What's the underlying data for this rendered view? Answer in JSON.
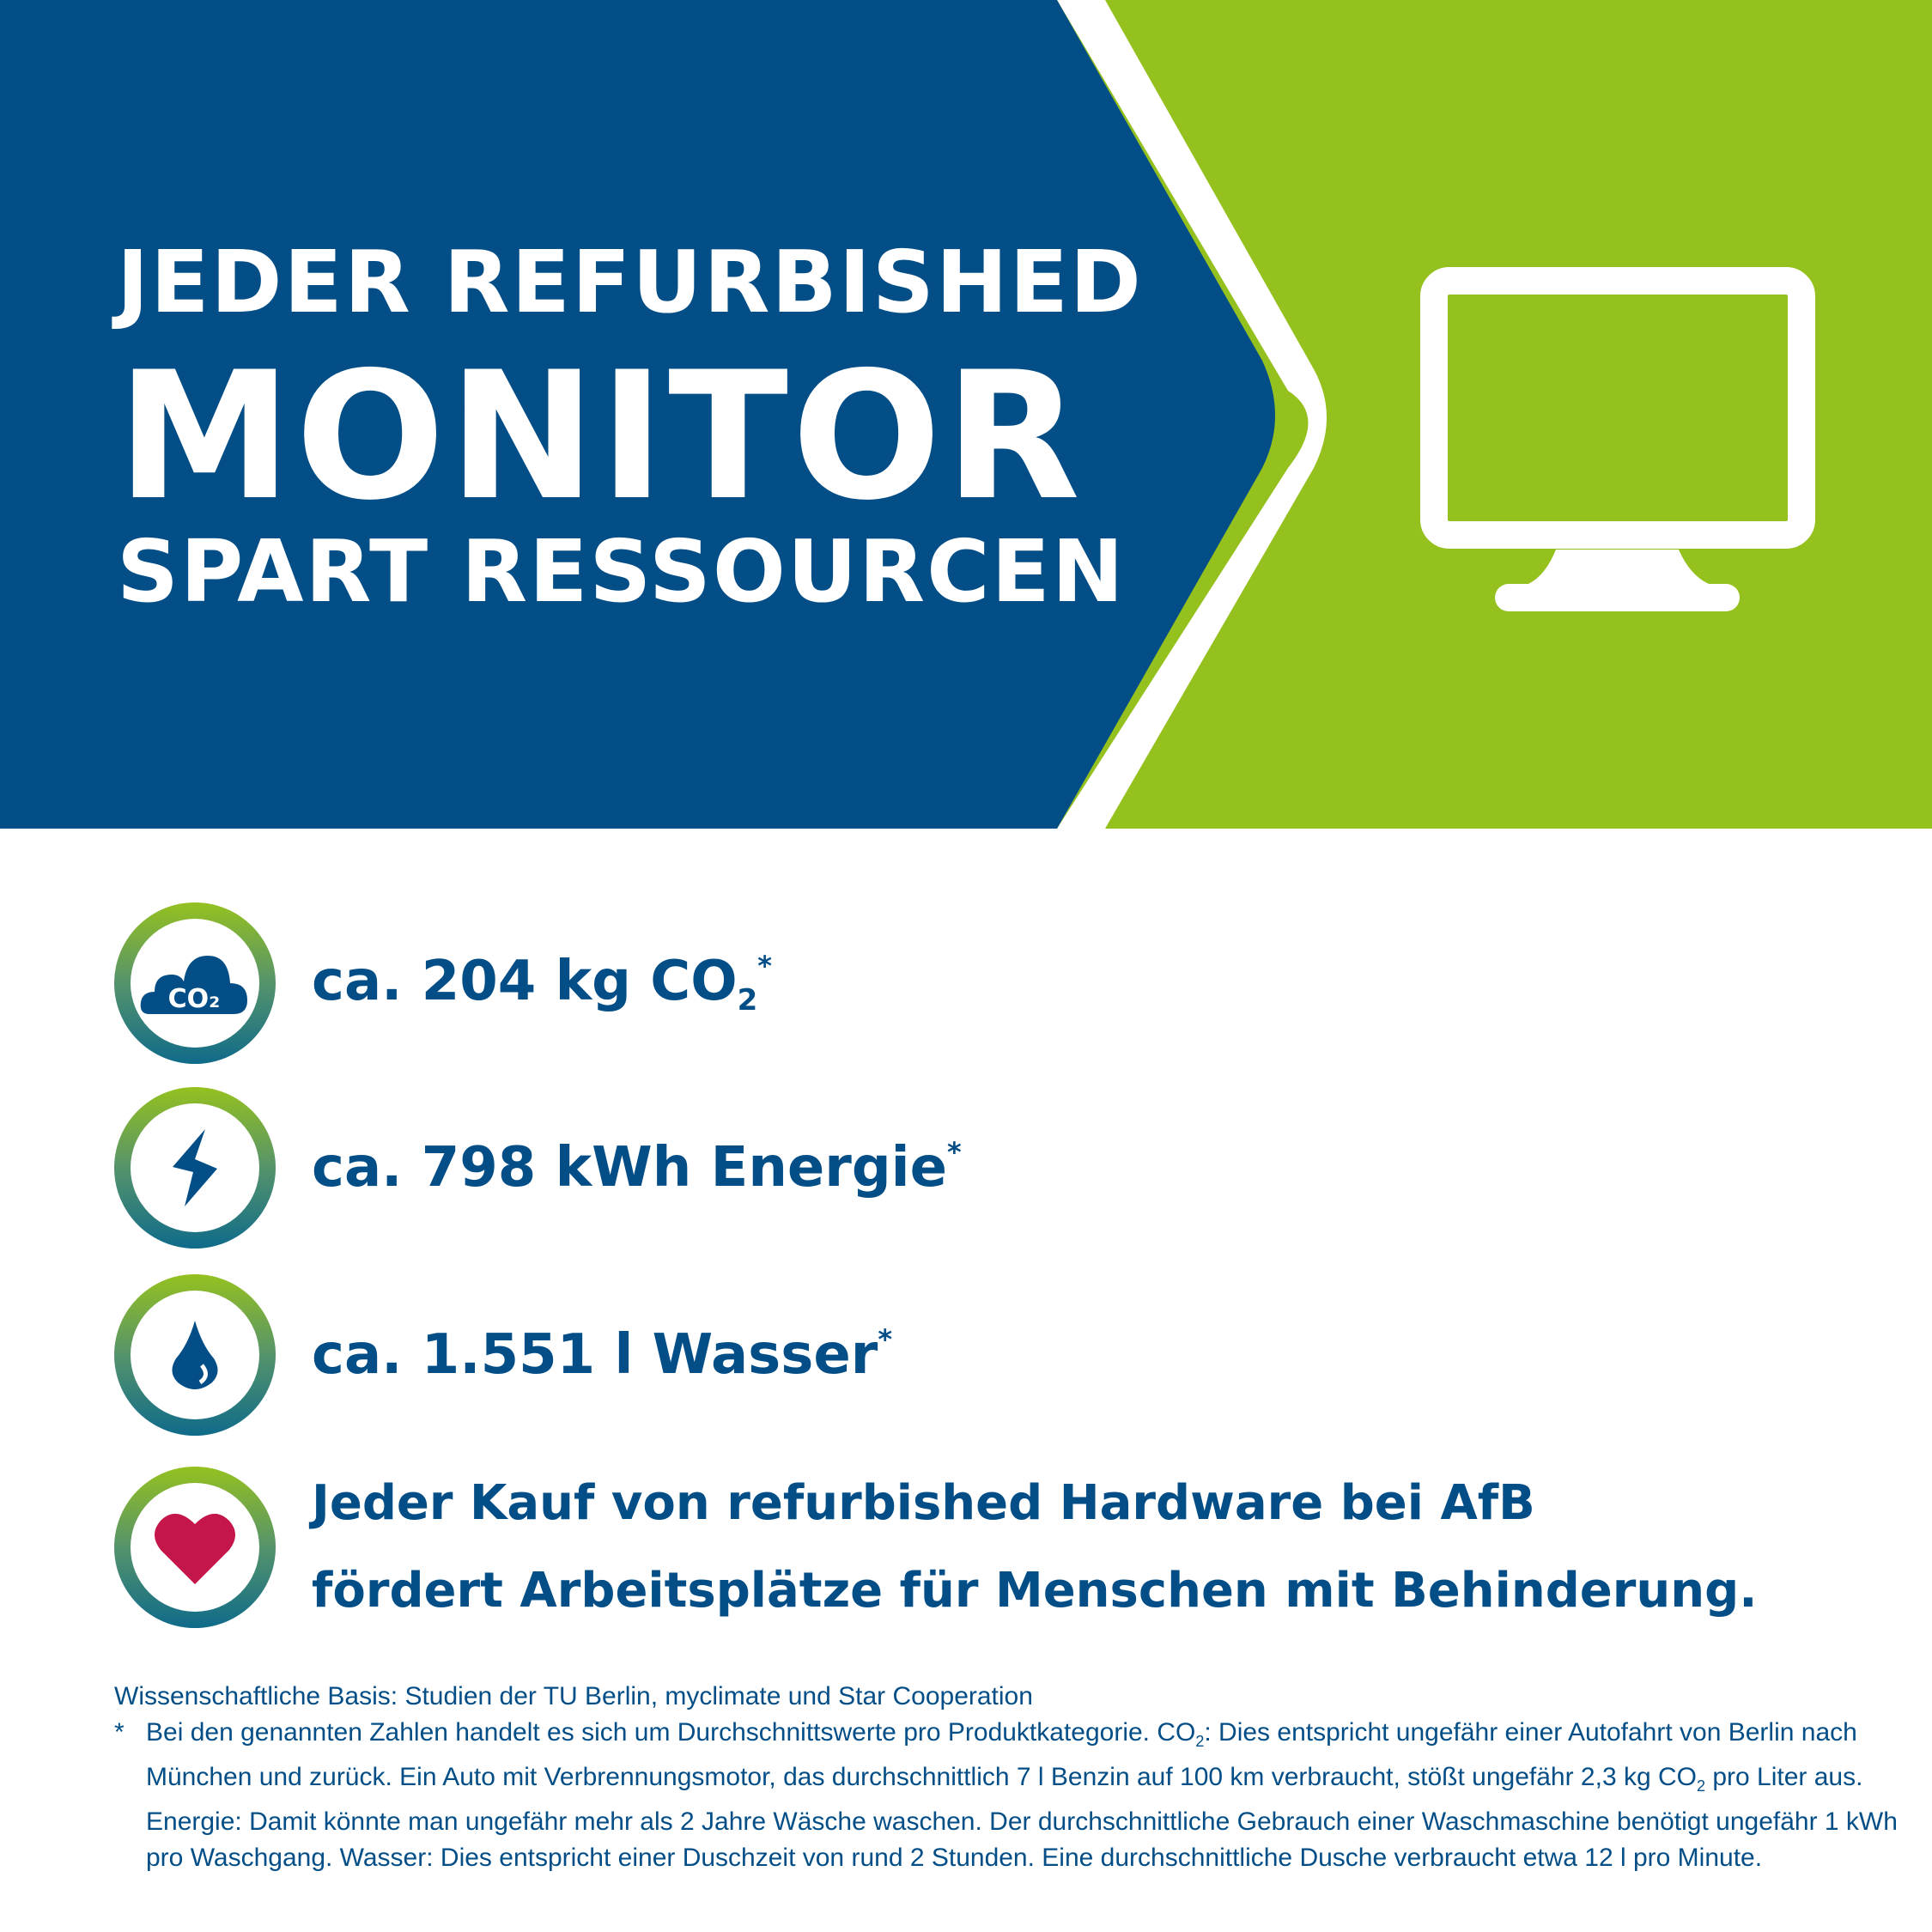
{
  "colors": {
    "blue": "#034e87",
    "green": "#95c11f",
    "heart": "#c5164b"
  },
  "header": {
    "line1": "JEDER REFURBISHED",
    "line2": "MONITOR",
    "line3": "SPART RESSOURCEN",
    "icon": "monitor-icon"
  },
  "stats": [
    {
      "icon": "co2-cloud-icon",
      "text": "ca. 204 kg CO",
      "sub": "2",
      "mark": "*"
    },
    {
      "icon": "lightning-icon",
      "text": "ca. 798 kWh Energie",
      "mark": "*"
    },
    {
      "icon": "water-drop-icon",
      "text": "ca. 1.551 l Wasser",
      "mark": "*"
    },
    {
      "icon": "heart-icon",
      "line1": "Jeder Kauf von refurbished Hardware bei AfB",
      "line2": "fördert Arbeitsplätze für Menschen mit Behinderung."
    }
  ],
  "cloud_label": "CO₂",
  "footer": {
    "basis": "Wissenschaftliche Basis: Studien der TU Berlin, myclimate und Star Cooperation",
    "asterisk": "*",
    "note_a": "Bei den genannten Zahlen handelt es sich um Durchschnittswerte pro Produktkategorie. CO",
    "sub": "2",
    "note_b": ": Dies entspricht ungefähr einer Autofahrt von Berlin nach München und zurück. Ein Auto mit Verbrennungsmotor, das durchschnittlich 7 l Benzin auf 100 km verbraucht, stößt ungefähr 2,3 kg CO",
    "note_c": " pro Liter aus. Energie: Damit könnte man ungefähr mehr als 2 Jahre Wäsche waschen. Der durchschnittliche Gebrauch einer Waschmaschine benötigt ungefähr 1 kWh pro Waschgang. Wasser: Dies entspricht einer Duschzeit von rund 2 Stunden. Eine durchschnittliche Dusche verbraucht etwa 12 l pro Minute."
  }
}
